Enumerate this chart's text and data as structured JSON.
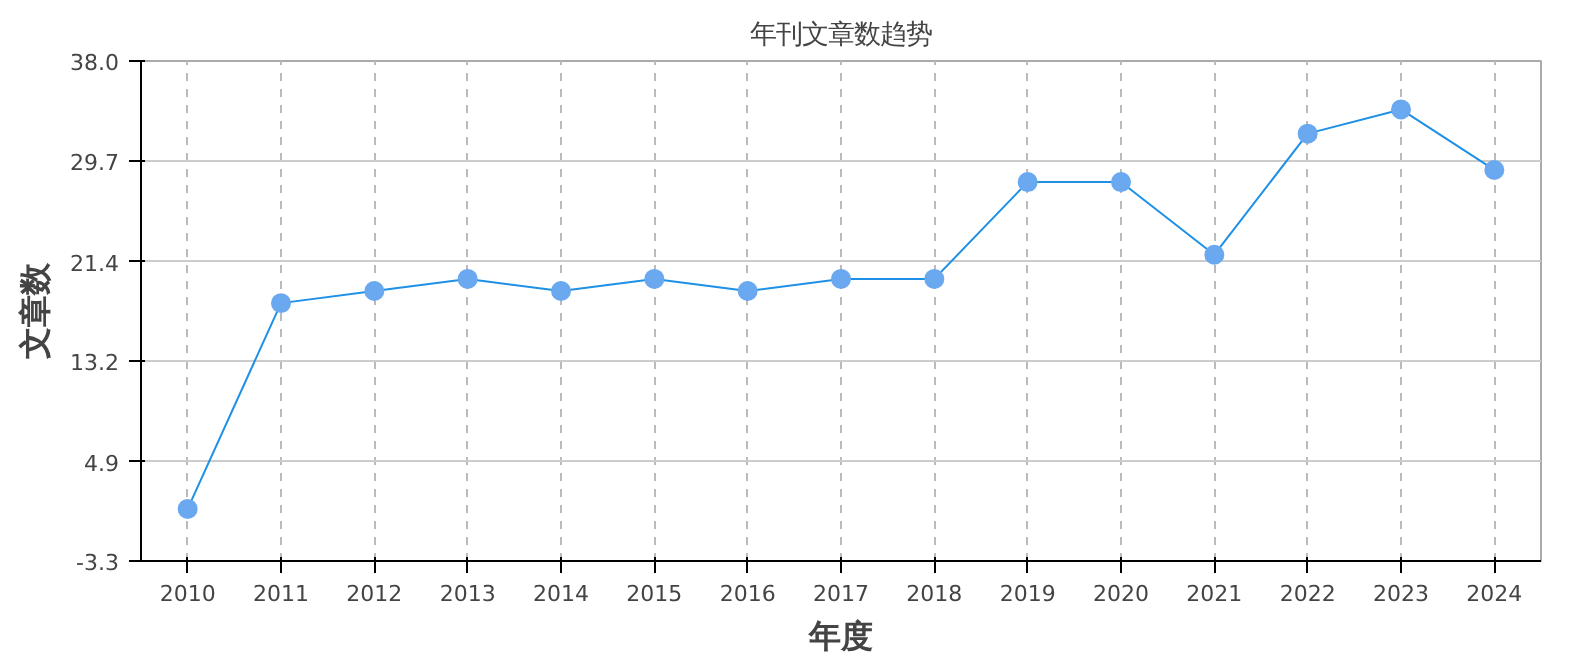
{
  "chart_data": {
    "type": "line",
    "title": "年刊文章数趋势",
    "xlabel": "年度",
    "ylabel": "文章数",
    "categories": [
      "2010",
      "2011",
      "2012",
      "2013",
      "2014",
      "2015",
      "2016",
      "2017",
      "2018",
      "2019",
      "2020",
      "2021",
      "2022",
      "2023",
      "2024"
    ],
    "series": [
      {
        "color": "#1e90e6",
        "values": [
          1,
          18,
          19,
          20,
          19,
          20,
          19,
          20,
          20,
          28,
          28,
          22,
          32,
          34,
          29
        ]
      }
    ],
    "ylim": [
      -3.3,
      38.0
    ],
    "yticks": [
      {
        "value": -3.3,
        "label": "-3.3"
      },
      4.9,
      13.2,
      21.4,
      29.7,
      {
        "value": 38.0,
        "label": "38.0"
      }
    ],
    "grid": true,
    "marker": "circle",
    "line_style": "solid"
  }
}
